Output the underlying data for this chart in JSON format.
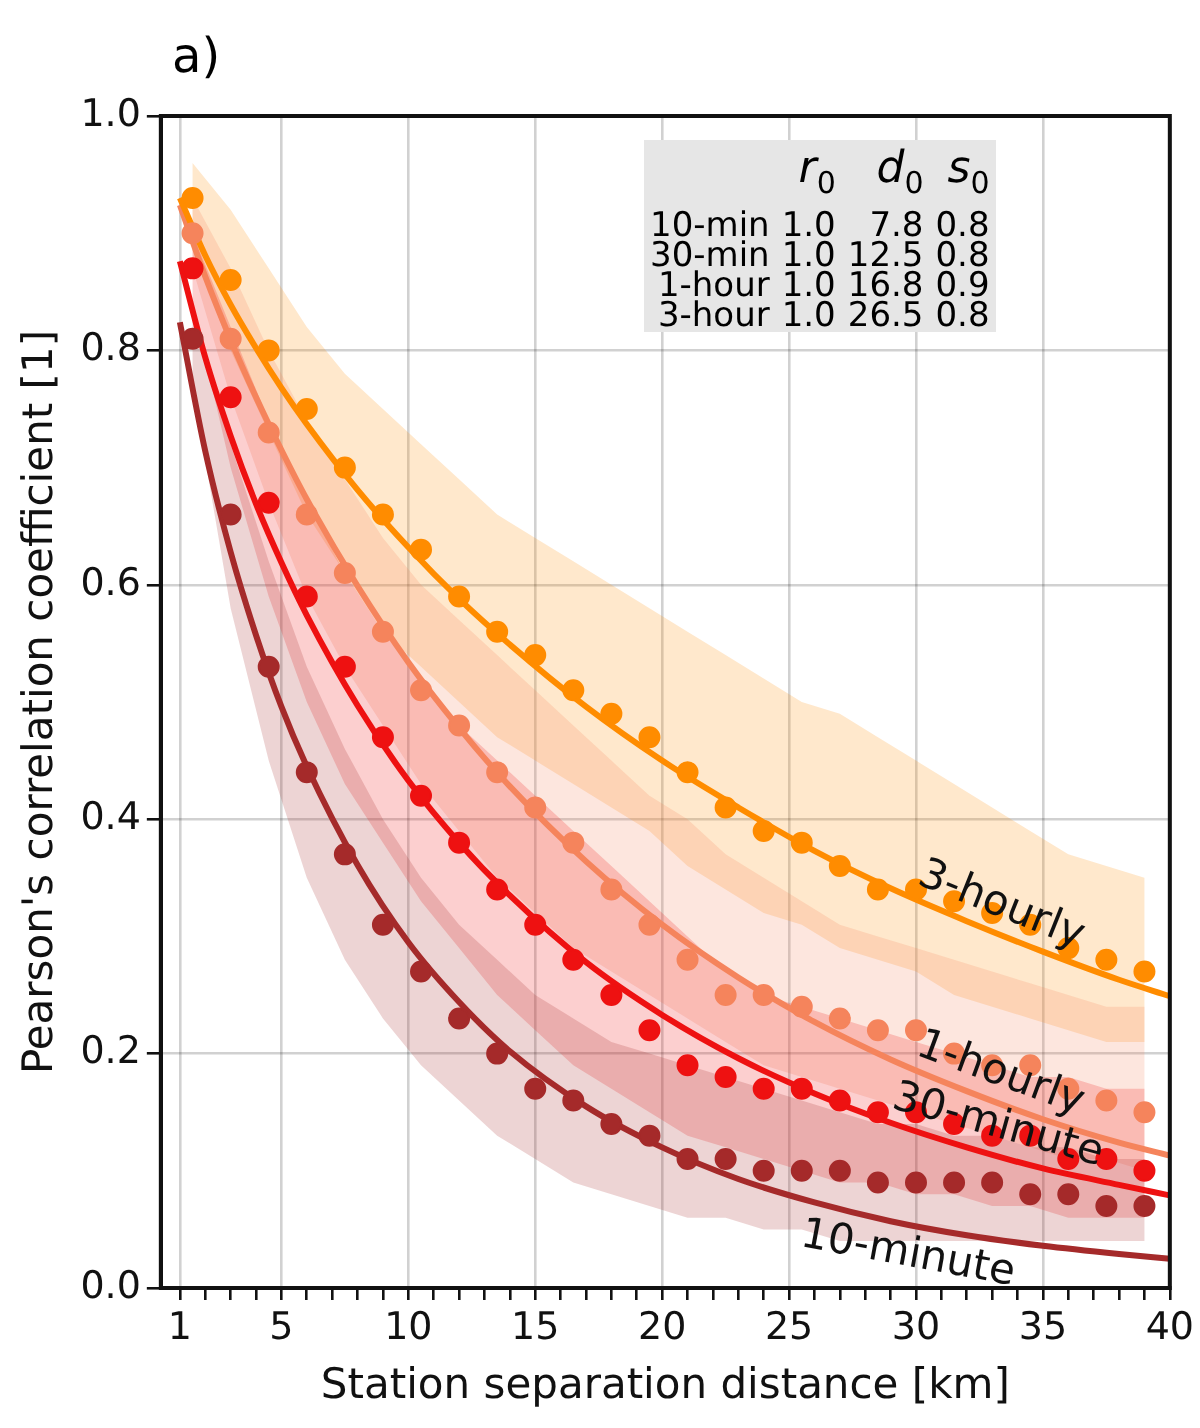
{
  "chart_data": {
    "type": "scatter",
    "title": "a)",
    "xlabel": "Station separation distance [km]",
    "ylabel": "Pearson's correlation coefficient [1]",
    "x": [
      1.5,
      3,
      4.5,
      6,
      7.5,
      9,
      10.5,
      12,
      13.5,
      15,
      16.5,
      18,
      19.5,
      21,
      22.5,
      24,
      25.5,
      27,
      28.5,
      30,
      31.5,
      33,
      34.5,
      36,
      37.5,
      39
    ],
    "series": [
      {
        "color": "#ff8c00",
        "values": [
          0.93,
          0.86,
          0.8,
          0.75,
          0.7,
          0.66,
          0.63,
          0.59,
          0.56,
          0.54,
          0.51,
          0.49,
          0.47,
          0.44,
          0.41,
          0.39,
          0.38,
          0.36,
          0.34,
          0.34,
          0.33,
          0.32,
          0.31,
          0.29,
          0.28,
          0.27
        ],
        "lower": [
          0.89,
          0.8,
          0.73,
          0.66,
          0.61,
          0.56,
          0.53,
          0.5,
          0.47,
          0.45,
          0.43,
          0.41,
          0.39,
          0.36,
          0.34,
          0.32,
          0.31,
          0.29,
          0.28,
          0.27,
          0.25,
          0.24,
          0.23,
          0.22,
          0.21,
          0.21
        ],
        "upper": [
          0.96,
          0.92,
          0.87,
          0.82,
          0.78,
          0.75,
          0.72,
          0.69,
          0.66,
          0.64,
          0.62,
          0.6,
          0.58,
          0.56,
          0.54,
          0.52,
          0.5,
          0.49,
          0.47,
          0.45,
          0.43,
          0.41,
          0.39,
          0.37,
          0.36,
          0.35
        ]
      },
      {
        "color": "#f5845c",
        "values": [
          0.9,
          0.81,
          0.73,
          0.66,
          0.61,
          0.56,
          0.51,
          0.48,
          0.44,
          0.41,
          0.38,
          0.34,
          0.31,
          0.28,
          0.25,
          0.25,
          0.24,
          0.23,
          0.22,
          0.22,
          0.2,
          0.19,
          0.19,
          0.17,
          0.16,
          0.15
        ],
        "lower": [
          0.87,
          0.76,
          0.67,
          0.59,
          0.53,
          0.48,
          0.43,
          0.39,
          0.35,
          0.32,
          0.29,
          0.27,
          0.25,
          0.23,
          0.21,
          0.19,
          0.18,
          0.17,
          0.16,
          0.15,
          0.14,
          0.13,
          0.12,
          0.11,
          0.11,
          0.1
        ],
        "upper": [
          0.93,
          0.87,
          0.8,
          0.74,
          0.69,
          0.64,
          0.6,
          0.57,
          0.54,
          0.51,
          0.48,
          0.45,
          0.42,
          0.4,
          0.37,
          0.35,
          0.33,
          0.31,
          0.3,
          0.29,
          0.28,
          0.27,
          0.26,
          0.25,
          0.24,
          0.24
        ]
      },
      {
        "color": "#ee1111",
        "values": [
          0.87,
          0.76,
          0.67,
          0.59,
          0.53,
          0.47,
          0.42,
          0.38,
          0.34,
          0.31,
          0.28,
          0.25,
          0.22,
          0.19,
          0.18,
          0.17,
          0.17,
          0.16,
          0.15,
          0.15,
          0.14,
          0.13,
          0.13,
          0.11,
          0.11,
          0.1
        ],
        "lower": [
          0.84,
          0.7,
          0.59,
          0.5,
          0.43,
          0.38,
          0.33,
          0.29,
          0.25,
          0.22,
          0.19,
          0.17,
          0.15,
          0.13,
          0.12,
          0.11,
          0.1,
          0.09,
          0.09,
          0.08,
          0.08,
          0.07,
          0.07,
          0.06,
          0.06,
          0.06
        ],
        "upper": [
          0.9,
          0.82,
          0.74,
          0.67,
          0.61,
          0.56,
          0.52,
          0.48,
          0.45,
          0.42,
          0.39,
          0.36,
          0.33,
          0.3,
          0.27,
          0.25,
          0.24,
          0.23,
          0.22,
          0.21,
          0.2,
          0.19,
          0.18,
          0.18,
          0.17,
          0.17
        ]
      },
      {
        "color": "#a52a2a",
        "values": [
          0.81,
          0.66,
          0.53,
          0.44,
          0.37,
          0.31,
          0.27,
          0.23,
          0.2,
          0.17,
          0.16,
          0.14,
          0.13,
          0.11,
          0.11,
          0.1,
          0.1,
          0.1,
          0.09,
          0.09,
          0.09,
          0.09,
          0.08,
          0.08,
          0.07,
          0.07
        ],
        "lower": [
          0.77,
          0.58,
          0.45,
          0.35,
          0.28,
          0.23,
          0.19,
          0.16,
          0.13,
          0.11,
          0.09,
          0.08,
          0.07,
          0.06,
          0.06,
          0.05,
          0.05,
          0.04,
          0.04,
          0.04,
          0.04,
          0.04,
          0.04,
          0.04,
          0.04,
          0.04
        ],
        "upper": [
          0.84,
          0.72,
          0.62,
          0.53,
          0.46,
          0.4,
          0.35,
          0.31,
          0.28,
          0.25,
          0.23,
          0.21,
          0.2,
          0.19,
          0.18,
          0.17,
          0.16,
          0.15,
          0.14,
          0.14,
          0.13,
          0.13,
          0.12,
          0.12,
          0.11,
          0.11
        ]
      },
      {
        "type": "line",
        "name": "3-hourly",
        "marker": "none",
        "color": "#ff8c00",
        "x": [
          1,
          2,
          3,
          4,
          5,
          6,
          8,
          10,
          12,
          14,
          17,
          20,
          23,
          26,
          29,
          32,
          35,
          38,
          40
        ],
        "values": [
          0.93,
          0.881,
          0.839,
          0.802,
          0.768,
          0.737,
          0.681,
          0.632,
          0.588,
          0.549,
          0.496,
          0.45,
          0.41,
          0.373,
          0.341,
          0.313,
          0.287,
          0.263,
          0.249
        ]
      },
      {
        "type": "line",
        "name": "1-hourly",
        "marker": "none",
        "color": "#f5845c",
        "x": [
          1,
          2,
          3,
          4,
          5,
          6,
          8,
          10,
          12,
          14,
          17,
          20,
          23,
          26,
          29,
          32,
          35,
          38,
          40
        ],
        "values": [
          0.924,
          0.863,
          0.809,
          0.76,
          0.715,
          0.673,
          0.599,
          0.534,
          0.478,
          0.428,
          0.364,
          0.31,
          0.265,
          0.227,
          0.195,
          0.168,
          0.144,
          0.124,
          0.113
        ]
      },
      {
        "type": "line",
        "name": "30-minute",
        "marker": "none",
        "color": "#ee1111",
        "x": [
          1,
          2,
          3,
          4,
          5,
          6,
          8,
          10,
          12,
          14,
          17,
          20,
          23,
          26,
          29,
          32,
          35,
          38,
          40
        ],
        "values": [
          0.876,
          0.794,
          0.727,
          0.669,
          0.619,
          0.574,
          0.497,
          0.433,
          0.38,
          0.335,
          0.278,
          0.233,
          0.196,
          0.166,
          0.141,
          0.12,
          0.102,
          0.088,
          0.079
        ]
      },
      {
        "type": "line",
        "name": "10-minute",
        "marker": "none",
        "color": "#a52a2a",
        "x": [
          1,
          2,
          3,
          4,
          5,
          6,
          8,
          10,
          12,
          14,
          17,
          20,
          23,
          26,
          29,
          32,
          35,
          38,
          40
        ],
        "values": [
          0.824,
          0.714,
          0.628,
          0.557,
          0.496,
          0.445,
          0.361,
          0.295,
          0.244,
          0.202,
          0.155,
          0.12,
          0.093,
          0.073,
          0.057,
          0.045,
          0.036,
          0.029,
          0.025
        ]
      }
    ],
    "annotations": [
      "r$_{0}$ d$_{0}$ s$_{0}$",
      "10-min 1.0 7.8 0.8",
      "30-min 1.0 12.5 0.8",
      "1-hour 1.0 16.8 0.9",
      "3-hour 1.0 26.5 0.8"
    ],
    "xlim": [
      0.25,
      40
    ],
    "ylim": [
      0,
      1
    ],
    "xticks": [
      1,
      {
        "value": 2,
        "label": null
      },
      {
        "value": 3,
        "label": null
      },
      {
        "value": 4,
        "label": null
      },
      5,
      {
        "value": 6,
        "label": null
      },
      {
        "value": 7,
        "label": null
      },
      {
        "value": 8,
        "label": null
      },
      {
        "value": 9,
        "label": null
      },
      10,
      {
        "value": 11,
        "label": null
      },
      {
        "value": 12,
        "label": null
      },
      {
        "value": 13,
        "label": null
      },
      {
        "value": 14,
        "label": null
      },
      15,
      {
        "value": 16,
        "label": null
      },
      {
        "value": 17,
        "label": null
      },
      {
        "value": 18,
        "label": null
      },
      {
        "value": 19,
        "label": null
      },
      20,
      {
        "value": 21,
        "label": null
      },
      {
        "value": 22,
        "label": null
      },
      {
        "value": 23,
        "label": null
      },
      {
        "value": 24,
        "label": null
      },
      25,
      {
        "value": 26,
        "label": null
      },
      {
        "value": 27,
        "label": null
      },
      {
        "value": 28,
        "label": null
      },
      {
        "value": 29,
        "label": null
      },
      30,
      {
        "value": 31,
        "label": null
      },
      {
        "value": 32,
        "label": null
      },
      {
        "value": 33,
        "label": null
      },
      {
        "value": 34,
        "label": null
      },
      35,
      {
        "value": 36,
        "label": null
      },
      {
        "value": 37,
        "label": null
      },
      {
        "value": 38,
        "label": null
      },
      {
        "value": 39,
        "label": null
      },
      40
    ],
    "yticks": [
      {
        "value": 0,
        "label": "0.0"
      },
      0.2,
      0.4,
      0.6,
      0.8,
      {
        "value": 1,
        "label": "1.0"
      }
    ],
    "grid": true,
    "legend": false,
    "marker": "circle"
  }
}
